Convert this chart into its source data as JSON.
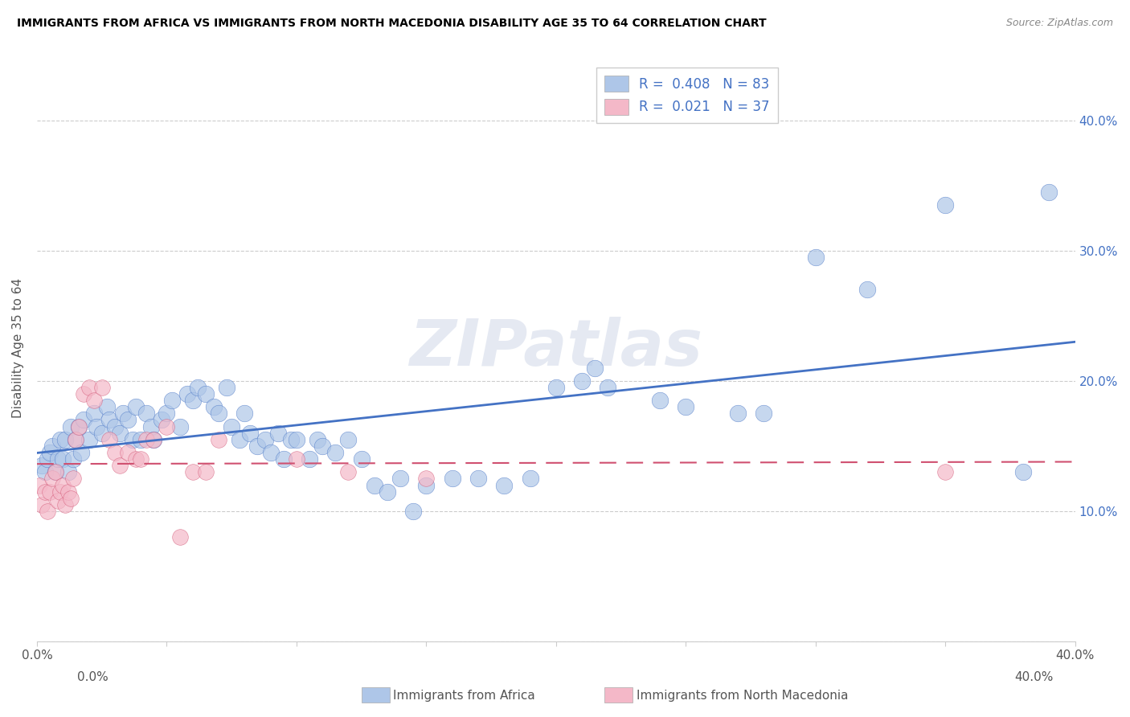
{
  "title": "IMMIGRANTS FROM AFRICA VS IMMIGRANTS FROM NORTH MACEDONIA DISABILITY AGE 35 TO 64 CORRELATION CHART",
  "source": "Source: ZipAtlas.com",
  "ylabel": "Disability Age 35 to 64",
  "xlim": [
    0,
    0.4
  ],
  "ylim": [
    0,
    0.45
  ],
  "legend_r1": "R =  0.408",
  "legend_n1": "N = 83",
  "legend_r2": "R =  0.021",
  "legend_n2": "N = 37",
  "color_africa": "#aec6e8",
  "color_macedonia": "#f4b8c8",
  "color_africa_line": "#4472c4",
  "color_macedonia_line": "#d05070",
  "watermark": "ZIPatlas",
  "africa_x": [
    0.002,
    0.003,
    0.004,
    0.005,
    0.006,
    0.007,
    0.008,
    0.009,
    0.01,
    0.011,
    0.012,
    0.013,
    0.014,
    0.015,
    0.016,
    0.017,
    0.018,
    0.02,
    0.022,
    0.023,
    0.025,
    0.027,
    0.028,
    0.03,
    0.032,
    0.033,
    0.035,
    0.037,
    0.038,
    0.04,
    0.042,
    0.044,
    0.045,
    0.048,
    0.05,
    0.052,
    0.055,
    0.058,
    0.06,
    0.062,
    0.065,
    0.068,
    0.07,
    0.073,
    0.075,
    0.078,
    0.08,
    0.082,
    0.085,
    0.088,
    0.09,
    0.093,
    0.095,
    0.098,
    0.1,
    0.105,
    0.108,
    0.11,
    0.115,
    0.12,
    0.125,
    0.13,
    0.135,
    0.14,
    0.145,
    0.15,
    0.16,
    0.17,
    0.18,
    0.19,
    0.2,
    0.21,
    0.215,
    0.22,
    0.24,
    0.25,
    0.27,
    0.28,
    0.3,
    0.32,
    0.35,
    0.38,
    0.39
  ],
  "africa_y": [
    0.135,
    0.13,
    0.14,
    0.145,
    0.15,
    0.13,
    0.14,
    0.155,
    0.14,
    0.155,
    0.13,
    0.165,
    0.14,
    0.155,
    0.165,
    0.145,
    0.17,
    0.155,
    0.175,
    0.165,
    0.16,
    0.18,
    0.17,
    0.165,
    0.16,
    0.175,
    0.17,
    0.155,
    0.18,
    0.155,
    0.175,
    0.165,
    0.155,
    0.17,
    0.175,
    0.185,
    0.165,
    0.19,
    0.185,
    0.195,
    0.19,
    0.18,
    0.175,
    0.195,
    0.165,
    0.155,
    0.175,
    0.16,
    0.15,
    0.155,
    0.145,
    0.16,
    0.14,
    0.155,
    0.155,
    0.14,
    0.155,
    0.15,
    0.145,
    0.155,
    0.14,
    0.12,
    0.115,
    0.125,
    0.1,
    0.12,
    0.125,
    0.125,
    0.12,
    0.125,
    0.195,
    0.2,
    0.21,
    0.195,
    0.185,
    0.18,
    0.175,
    0.175,
    0.295,
    0.27,
    0.335,
    0.13,
    0.345
  ],
  "macedonia_x": [
    0.001,
    0.002,
    0.003,
    0.004,
    0.005,
    0.006,
    0.007,
    0.008,
    0.009,
    0.01,
    0.011,
    0.012,
    0.013,
    0.014,
    0.015,
    0.016,
    0.018,
    0.02,
    0.022,
    0.025,
    0.028,
    0.03,
    0.032,
    0.035,
    0.038,
    0.04,
    0.042,
    0.045,
    0.05,
    0.055,
    0.06,
    0.065,
    0.07,
    0.1,
    0.12,
    0.15,
    0.35
  ],
  "macedonia_y": [
    0.12,
    0.105,
    0.115,
    0.1,
    0.115,
    0.125,
    0.13,
    0.108,
    0.115,
    0.12,
    0.105,
    0.115,
    0.11,
    0.125,
    0.155,
    0.165,
    0.19,
    0.195,
    0.185,
    0.195,
    0.155,
    0.145,
    0.135,
    0.145,
    0.14,
    0.14,
    0.155,
    0.155,
    0.165,
    0.08,
    0.13,
    0.13,
    0.155,
    0.14,
    0.13,
    0.125,
    0.13
  ]
}
